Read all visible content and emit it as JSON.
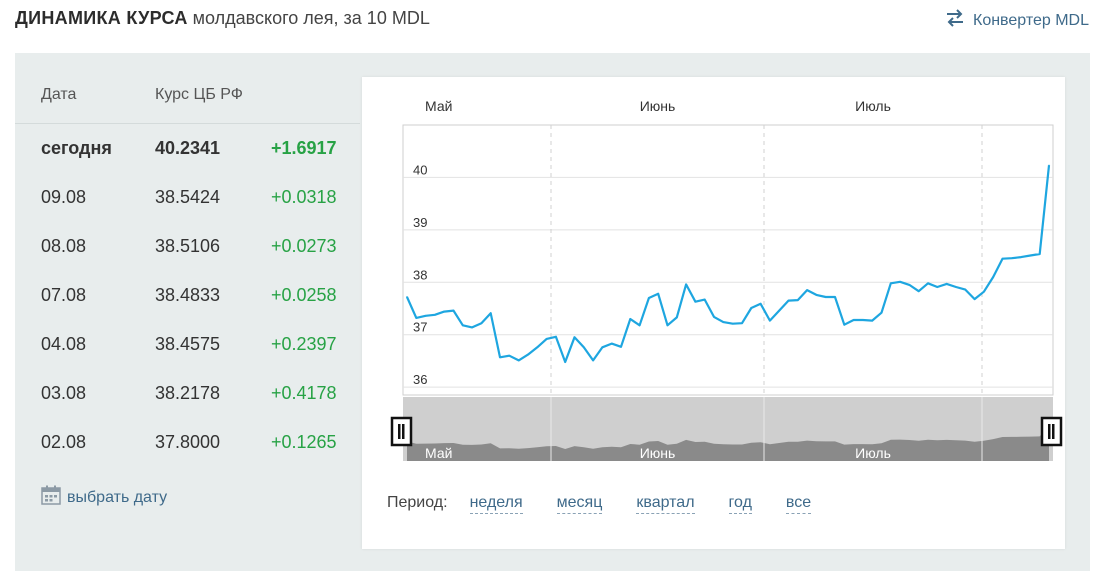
{
  "header": {
    "title_strong": "ДИНАМИКА КУРСА",
    "title_rest": "молдавского лея, за 10 MDL",
    "converter_label": "Конвертер MDL"
  },
  "table": {
    "col_date": "Дата",
    "col_rate": "Курс ЦБ РФ",
    "rows": [
      {
        "date": "сегодня",
        "rate": "40.2341",
        "change": "+1.6917"
      },
      {
        "date": "09.08",
        "rate": "38.5424",
        "change": "+0.0318"
      },
      {
        "date": "08.08",
        "rate": "38.5106",
        "change": "+0.0273"
      },
      {
        "date": "07.08",
        "rate": "38.4833",
        "change": "+0.0258"
      },
      {
        "date": "04.08",
        "rate": "38.4575",
        "change": "+0.2397"
      },
      {
        "date": "03.08",
        "rate": "38.2178",
        "change": "+0.4178"
      },
      {
        "date": "02.08",
        "rate": "37.8000",
        "change": "+0.1265"
      }
    ],
    "pick_date_label": "выбрать дату"
  },
  "period": {
    "label": "Период:",
    "options": [
      "неделя",
      "месяц",
      "квартал",
      "год",
      "все"
    ]
  },
  "colors": {
    "line": "#1ea6e0",
    "positive": "#27a245",
    "link": "#3f6a8a",
    "panel_bg": "#e8eded"
  },
  "chart_data": {
    "type": "line",
    "title": "",
    "xlabel": "",
    "ylabel": "",
    "months": [
      "Май",
      "Июнь",
      "Июль"
    ],
    "y_ticks": [
      36,
      37,
      38,
      39,
      40
    ],
    "ylim": [
      35.85,
      41.0
    ],
    "grid": true,
    "series": [
      {
        "values": [
          37.72,
          37.32,
          37.36,
          37.38,
          37.44,
          37.46,
          37.18,
          37.14,
          37.22,
          37.41,
          36.57,
          36.6,
          36.51,
          36.62,
          36.76,
          36.92,
          36.96,
          36.48,
          36.95,
          36.76,
          36.51,
          36.76,
          36.83,
          36.77,
          37.3,
          37.18,
          37.7,
          37.78,
          37.18,
          37.33,
          37.96,
          37.63,
          37.67,
          37.34,
          37.24,
          37.21,
          37.22,
          37.51,
          37.59,
          37.27,
          37.46,
          37.65,
          37.66,
          37.85,
          37.76,
          37.72,
          37.72,
          37.19,
          37.28,
          37.28,
          37.27,
          37.42,
          37.98,
          38.01,
          37.95,
          37.83,
          37.98,
          37.91,
          37.97,
          37.91,
          37.86,
          37.68,
          37.82,
          38.1,
          38.45,
          38.46,
          38.48,
          38.51,
          38.54,
          40.23
        ]
      }
    ]
  }
}
